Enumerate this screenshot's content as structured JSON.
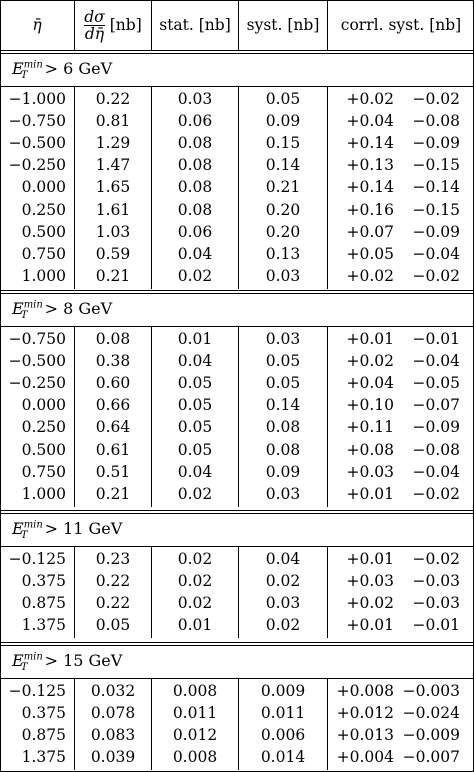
{
  "headers": {
    "eta": "η̄",
    "xsec_num": "dσ",
    "xsec_den": "dη̄",
    "xsec_unit": "[nb]",
    "stat": "stat. [nb]",
    "syst": "syst. [nb]",
    "corr": "corrl. syst. [nb]"
  },
  "sections": [
    {
      "et_symbol": "E",
      "et_sup": "min",
      "et_sub": "T",
      "cut": "> 6 GeV",
      "rows": [
        [
          "−1.000",
          "0.22",
          "0.03",
          "0.05",
          "+0.02",
          "−0.02"
        ],
        [
          "−0.750",
          "0.81",
          "0.06",
          "0.09",
          "+0.04",
          "−0.08"
        ],
        [
          "−0.500",
          "1.29",
          "0.08",
          "0.15",
          "+0.14",
          "−0.09"
        ],
        [
          "−0.250",
          "1.47",
          "0.08",
          "0.14",
          "+0.13",
          "−0.15"
        ],
        [
          "0.000",
          "1.65",
          "0.08",
          "0.21",
          "+0.14",
          "−0.14"
        ],
        [
          "0.250",
          "1.61",
          "0.08",
          "0.20",
          "+0.16",
          "−0.15"
        ],
        [
          "0.500",
          "1.03",
          "0.06",
          "0.20",
          "+0.07",
          "−0.09"
        ],
        [
          "0.750",
          "0.59",
          "0.04",
          "0.13",
          "+0.05",
          "−0.04"
        ],
        [
          "1.000",
          "0.21",
          "0.02",
          "0.03",
          "+0.02",
          "−0.02"
        ]
      ]
    },
    {
      "et_symbol": "E",
      "et_sup": "min",
      "et_sub": "T",
      "cut": "> 8 GeV",
      "rows": [
        [
          "−0.750",
          "0.08",
          "0.01",
          "0.03",
          "+0.01",
          "−0.01"
        ],
        [
          "−0.500",
          "0.38",
          "0.04",
          "0.05",
          "+0.02",
          "−0.04"
        ],
        [
          "−0.250",
          "0.60",
          "0.05",
          "0.05",
          "+0.04",
          "−0.05"
        ],
        [
          "0.000",
          "0.66",
          "0.05",
          "0.14",
          "+0.10",
          "−0.07"
        ],
        [
          "0.250",
          "0.64",
          "0.05",
          "0.08",
          "+0.11",
          "−0.09"
        ],
        [
          "0.500",
          "0.61",
          "0.05",
          "0.08",
          "+0.08",
          "−0.08"
        ],
        [
          "0.750",
          "0.51",
          "0.04",
          "0.09",
          "+0.03",
          "−0.04"
        ],
        [
          "1.000",
          "0.21",
          "0.02",
          "0.03",
          "+0.01",
          "−0.02"
        ]
      ]
    },
    {
      "et_symbol": "E",
      "et_sup": "min",
      "et_sub": "T",
      "cut": "> 11 GeV",
      "rows": [
        [
          "−0.125",
          "0.23",
          "0.02",
          "0.04",
          "+0.01",
          "−0.02"
        ],
        [
          "0.375",
          "0.22",
          "0.02",
          "0.02",
          "+0.03",
          "−0.03"
        ],
        [
          "0.875",
          "0.22",
          "0.02",
          "0.03",
          "+0.02",
          "−0.03"
        ],
        [
          "1.375",
          "0.05",
          "0.01",
          "0.02",
          "+0.01",
          "−0.01"
        ]
      ]
    },
    {
      "et_symbol": "E",
      "et_sup": "min",
      "et_sub": "T",
      "cut": "> 15 GeV",
      "rows": [
        [
          "−0.125",
          "0.032",
          "0.008",
          "0.009",
          "+0.008",
          "−0.003"
        ],
        [
          "0.375",
          "0.078",
          "0.011",
          "0.011",
          "+0.012",
          "−0.024"
        ],
        [
          "0.875",
          "0.083",
          "0.012",
          "0.006",
          "+0.013",
          "−0.009"
        ],
        [
          "1.375",
          "0.039",
          "0.008",
          "0.014",
          "+0.004",
          "−0.007"
        ]
      ]
    }
  ]
}
